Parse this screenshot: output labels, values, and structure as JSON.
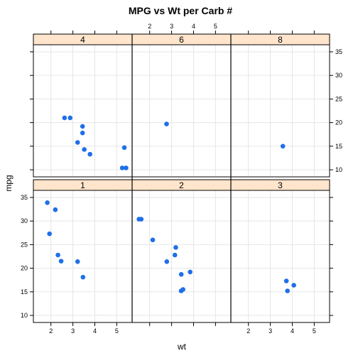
{
  "chart_data": {
    "type": "scatter",
    "title": "MPG vs Wt per Carb #",
    "xlabel": "wt",
    "ylabel": "mpg",
    "xlim": [
      1.2,
      5.7
    ],
    "ylim": [
      8.5,
      36.5
    ],
    "x_ticks": [
      2,
      3,
      4,
      5
    ],
    "y_ticks": [
      10,
      15,
      20,
      25,
      30,
      35
    ],
    "grid": true,
    "point_color": "#1f6fe8",
    "strip_color": "#ffe5cc",
    "panels": [
      {
        "label": "4",
        "row": 0,
        "col": 0,
        "points": [
          [
            2.62,
            21.0
          ],
          [
            2.875,
            21.0
          ],
          [
            3.44,
            19.2
          ],
          [
            3.44,
            17.8
          ],
          [
            3.215,
            15.8
          ],
          [
            3.52,
            14.3
          ],
          [
            3.78,
            13.3
          ],
          [
            5.345,
            14.7
          ],
          [
            5.25,
            10.4
          ],
          [
            5.424,
            10.4
          ]
        ]
      },
      {
        "label": "6",
        "row": 0,
        "col": 1,
        "points": [
          [
            2.77,
            19.7
          ]
        ]
      },
      {
        "label": "8",
        "row": 0,
        "col": 2,
        "points": [
          [
            3.57,
            15.0
          ]
        ]
      },
      {
        "label": "1",
        "row": 1,
        "col": 0,
        "points": [
          [
            1.835,
            33.9
          ],
          [
            2.2,
            32.4
          ],
          [
            1.935,
            27.3
          ],
          [
            2.32,
            22.8
          ],
          [
            2.465,
            21.5
          ],
          [
            3.215,
            21.4
          ],
          [
            3.46,
            18.1
          ]
        ]
      },
      {
        "label": "2",
        "row": 1,
        "col": 1,
        "points": [
          [
            1.615,
            30.4
          ],
          [
            1.513,
            30.4
          ],
          [
            2.14,
            26.0
          ],
          [
            3.19,
            24.4
          ],
          [
            3.15,
            22.8
          ],
          [
            2.78,
            21.4
          ],
          [
            3.845,
            19.2
          ],
          [
            3.44,
            18.7
          ],
          [
            3.52,
            15.5
          ],
          [
            3.435,
            15.2
          ]
        ]
      },
      {
        "label": "3",
        "row": 1,
        "col": 2,
        "points": [
          [
            4.07,
            16.4
          ],
          [
            3.73,
            17.3
          ],
          [
            3.78,
            15.2
          ]
        ]
      }
    ]
  }
}
